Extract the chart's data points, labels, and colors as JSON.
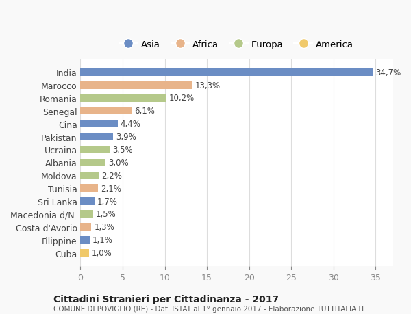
{
  "countries": [
    "India",
    "Marocco",
    "Romania",
    "Senegal",
    "Cina",
    "Pakistan",
    "Ucraina",
    "Albania",
    "Moldova",
    "Tunisia",
    "Sri Lanka",
    "Macedonia d/N.",
    "Costa d'Avorio",
    "Filippine",
    "Cuba"
  ],
  "values": [
    34.7,
    13.3,
    10.2,
    6.1,
    4.4,
    3.9,
    3.5,
    3.0,
    2.2,
    2.1,
    1.7,
    1.5,
    1.3,
    1.1,
    1.0
  ],
  "labels": [
    "34,7%",
    "13,3%",
    "10,2%",
    "6,1%",
    "4,4%",
    "3,9%",
    "3,5%",
    "3,0%",
    "2,2%",
    "2,1%",
    "1,7%",
    "1,5%",
    "1,3%",
    "1,1%",
    "1,0%"
  ],
  "continents": [
    "Asia",
    "Africa",
    "Europa",
    "Africa",
    "Asia",
    "Asia",
    "Europa",
    "Europa",
    "Europa",
    "Africa",
    "Asia",
    "Europa",
    "Africa",
    "Asia",
    "America"
  ],
  "colors": {
    "Asia": "#6b8dc4",
    "Africa": "#e8b48a",
    "Europa": "#b5c98a",
    "America": "#f0c96a"
  },
  "legend_order": [
    "Asia",
    "Africa",
    "Europa",
    "America"
  ],
  "title1": "Cittadini Stranieri per Cittadinanza - 2017",
  "title2": "COMUNE DI POVIGLIO (RE) - Dati ISTAT al 1° gennaio 2017 - Elaborazione TUTTITALIA.IT",
  "xlim": [
    0,
    37
  ],
  "xticks": [
    0,
    5,
    10,
    15,
    20,
    25,
    30,
    35
  ],
  "background_color": "#f9f9f9",
  "bar_background": "#ffffff"
}
